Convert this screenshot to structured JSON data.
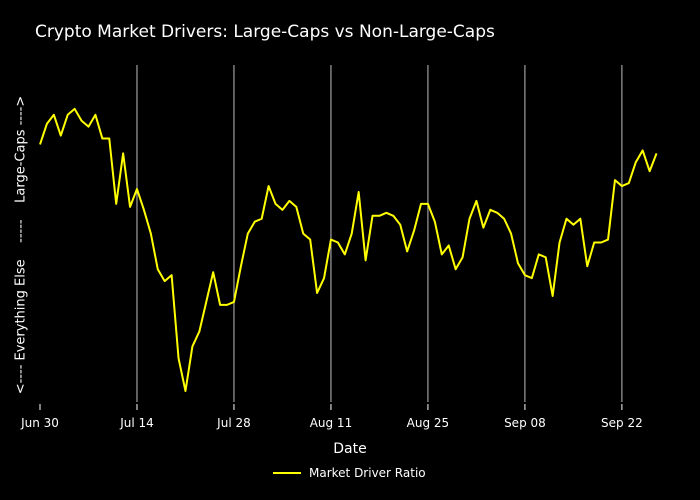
{
  "chart_data": {
    "type": "line",
    "title": "Crypto Market Drivers: Large-Caps vs Non-Large-Caps",
    "xlabel": "Date",
    "ylabel": "<---- Everything Else    -----    Large-Caps ---->",
    "x_tick_labels": [
      "Jun 30",
      "Jul 14",
      "Jul 28",
      "Aug 11",
      "Aug 25",
      "Sep 08",
      "Sep 22"
    ],
    "x_tick_days": [
      0,
      14,
      28,
      42,
      56,
      70,
      84
    ],
    "x_range_days": [
      0,
      89.5
    ],
    "ylim": [
      0,
      1
    ],
    "grid_x": true,
    "line_color": "#ffff00",
    "series": [
      {
        "name": "Market Driver Ratio",
        "values": [
          0.83,
          0.9,
          0.93,
          0.86,
          0.93,
          0.95,
          0.91,
          0.89,
          0.93,
          0.85,
          0.85,
          0.63,
          0.8,
          0.62,
          0.68,
          0.61,
          0.53,
          0.41,
          0.37,
          0.39,
          0.11,
          0.0,
          0.15,
          0.2,
          0.3,
          0.4,
          0.29,
          0.29,
          0.3,
          0.42,
          0.53,
          0.57,
          0.58,
          0.69,
          0.63,
          0.61,
          0.64,
          0.62,
          0.53,
          0.51,
          0.33,
          0.38,
          0.51,
          0.5,
          0.46,
          0.53,
          0.67,
          0.44,
          0.59,
          0.59,
          0.6,
          0.59,
          0.56,
          0.47,
          0.54,
          0.63,
          0.63,
          0.57,
          0.46,
          0.49,
          0.41,
          0.45,
          0.58,
          0.64,
          0.55,
          0.61,
          0.6,
          0.58,
          0.53,
          0.43,
          0.39,
          0.38,
          0.46,
          0.45,
          0.32,
          0.5,
          0.58,
          0.56,
          0.58,
          0.42,
          0.5,
          0.5,
          0.51,
          0.71,
          0.69,
          0.7,
          0.77,
          0.81,
          0.74,
          0.8
        ]
      }
    ]
  },
  "legend": {
    "label": "Market Driver Ratio"
  }
}
